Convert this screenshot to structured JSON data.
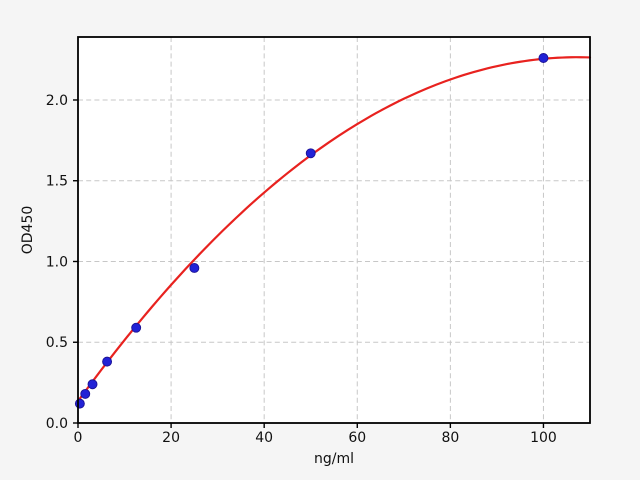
{
  "figure": {
    "background_color": "#f5f5f5",
    "plot_background_color": "#ffffff",
    "spine_color": "#000000",
    "grid_color": "#c7c7c7",
    "tick_label_color": "#111111"
  },
  "chart_data": {
    "type": "scatter",
    "title": "",
    "xlabel": "ng/ml",
    "ylabel": "OD450",
    "xlim": [
      0,
      110
    ],
    "ylim": [
      0,
      2.39
    ],
    "grid": true,
    "grid_style": "dashed",
    "legend": "none",
    "x_ticks": [
      {
        "value": 0,
        "label": "0"
      },
      {
        "value": 20,
        "label": "20"
      },
      {
        "value": 40,
        "label": "40"
      },
      {
        "value": 60,
        "label": "60"
      },
      {
        "value": 80,
        "label": "80"
      },
      {
        "value": 100,
        "label": "100"
      }
    ],
    "y_ticks": [
      {
        "value": 0.0,
        "label": "0.0"
      },
      {
        "value": 0.5,
        "label": "0.5"
      },
      {
        "value": 1.0,
        "label": "1.0"
      },
      {
        "value": 1.5,
        "label": "1.5"
      },
      {
        "value": 2.0,
        "label": "2.0"
      }
    ],
    "series": [
      {
        "name": "standard-points",
        "type": "scatter",
        "marker": "circle",
        "color": "#2222d6",
        "edge_color": "#1b1294",
        "x": [
          0.4,
          1.56,
          3.12,
          6.25,
          12.5,
          25,
          50,
          100
        ],
        "y": [
          0.12,
          0.18,
          0.24,
          0.38,
          0.59,
          0.96,
          1.67,
          2.26
        ]
      }
    ],
    "fit_curve": {
      "name": "fitted-standard-curve",
      "type": "quadratic",
      "color": "#e8221f",
      "a": 0.135,
      "b": 0.0397,
      "c": -0.000185,
      "x_range": [
        0,
        110
      ]
    }
  }
}
